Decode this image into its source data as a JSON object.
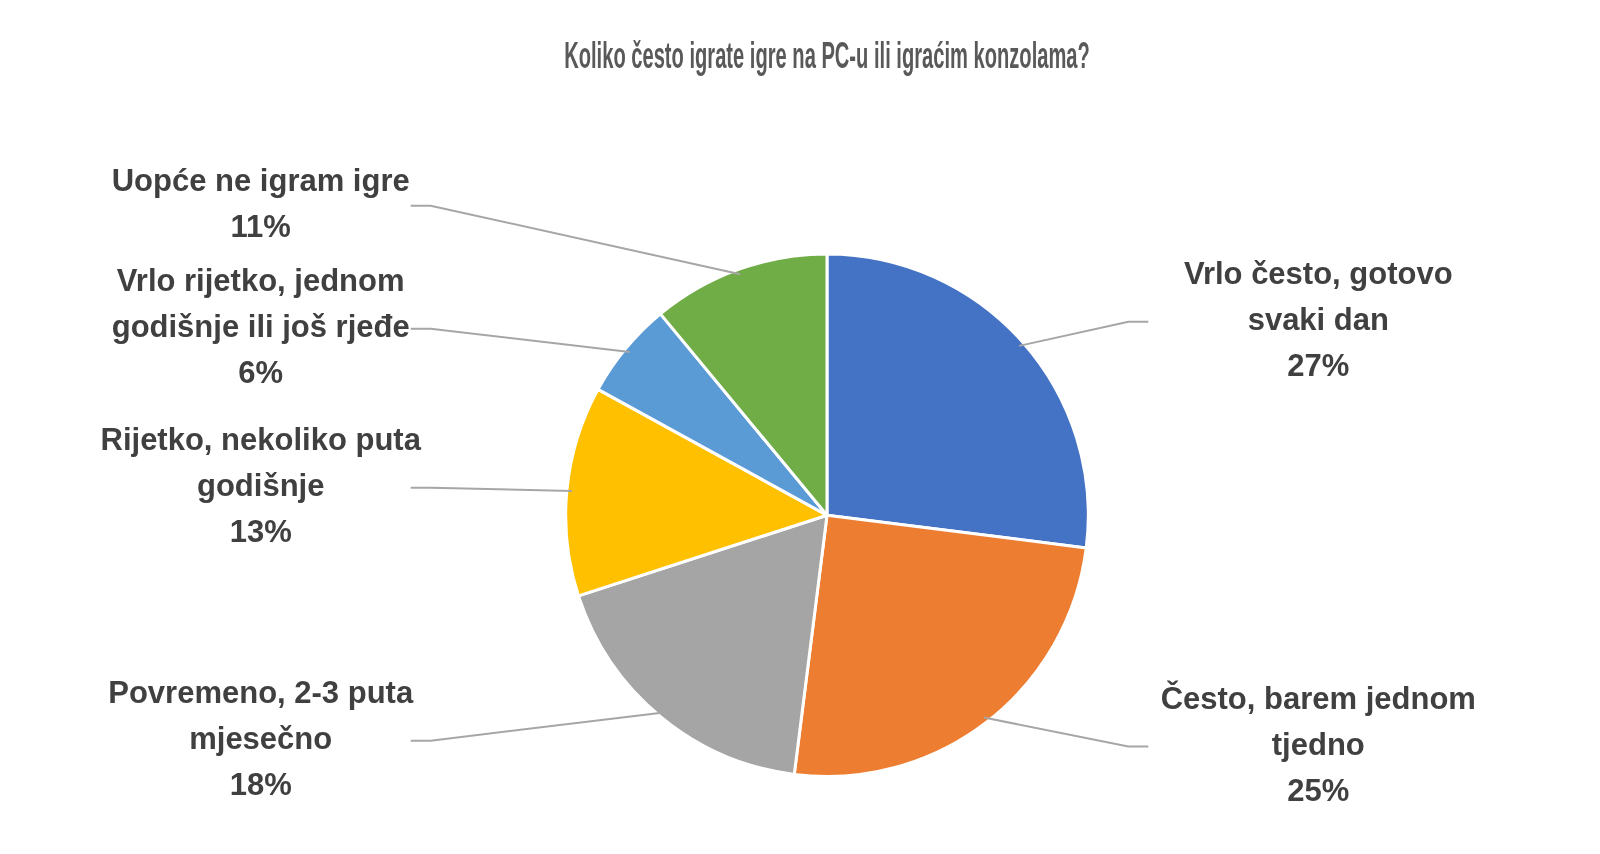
{
  "chart_data": {
    "type": "pie",
    "title": "Koliko često igrate igre na PC-u ili igraćim konzolama?",
    "categories": [
      "Vrlo često, gotovo svaki dan",
      "Često, barem jednom tjedno",
      "Povremeno, 2-3 puta mjesečno",
      "Rijetko, nekoliko puta godišnje",
      "Vrlo rijetko, jednom godišnje ili još rjeđe",
      "Uopće ne igram igre"
    ],
    "values": [
      27,
      25,
      18,
      13,
      6,
      11
    ],
    "colors": [
      "#4472c4",
      "#ed7d31",
      "#a5a5a5",
      "#ffc000",
      "#5b9bd5",
      "#70ad47"
    ],
    "value_labels": [
      "27%",
      "25%",
      "18%",
      "13%",
      "6%",
      "11%"
    ],
    "legend": false
  }
}
